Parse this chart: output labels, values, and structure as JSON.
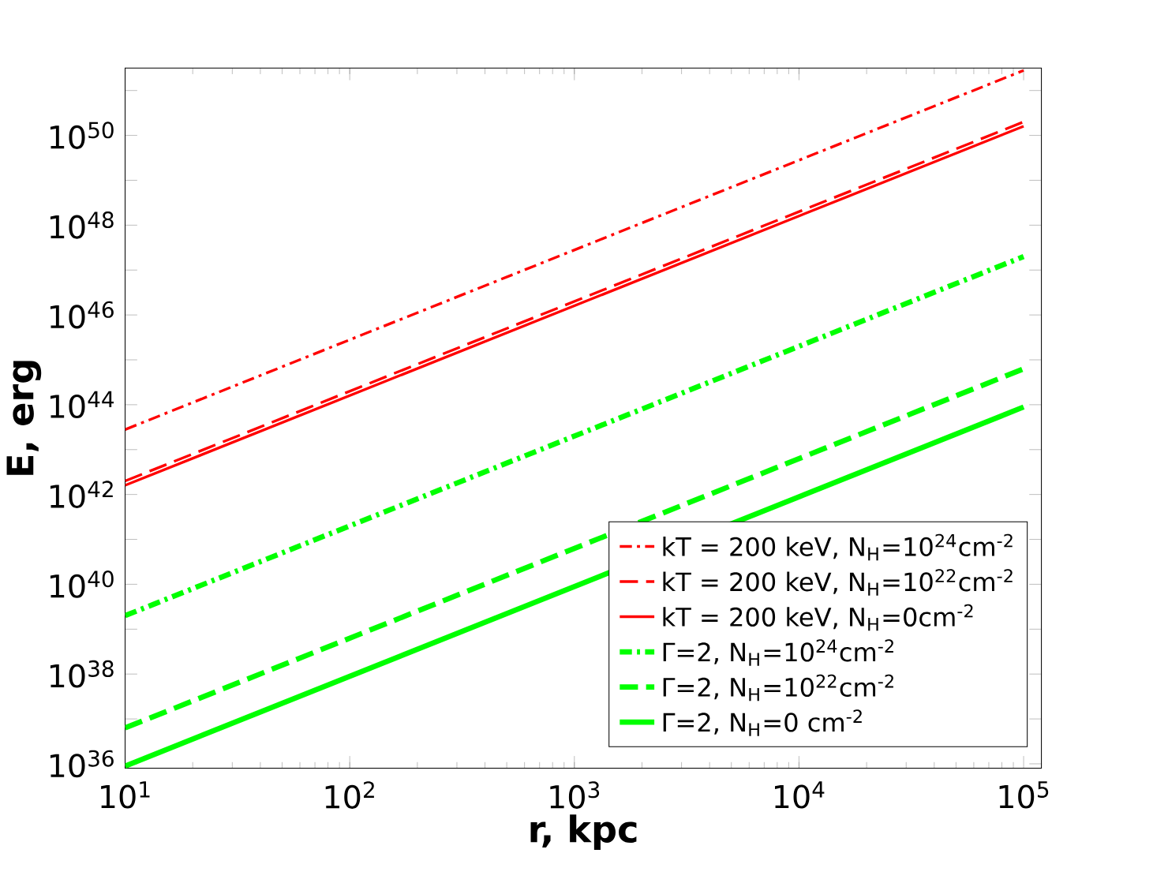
{
  "chart_data": {
    "type": "line",
    "xlabel": "r, kpc",
    "ylabel": "E, erg",
    "log": "xy",
    "x": [
      10,
      100000
    ],
    "xlim": [
      10,
      120000
    ],
    "ylim": [
      8e+35,
      3.16e+51
    ],
    "xticks": [
      {
        "value": 10,
        "label": "10$^{1}$"
      },
      {
        "value": 100,
        "label": "10$^{2}$"
      },
      {
        "value": 1000,
        "label": "10$^{3}$"
      },
      {
        "value": 10000,
        "label": "10$^{4}$"
      },
      {
        "value": 100000,
        "label": "10$^{5}$"
      }
    ],
    "yticks": [
      {
        "value": 1e+36,
        "label": "10$^{36}$"
      },
      {
        "value": 1e+37,
        "label": null
      },
      {
        "value": 1e+38,
        "label": "10$^{38}$"
      },
      {
        "value": 1e+39,
        "label": null
      },
      {
        "value": 1e+40,
        "label": "10$^{40}$"
      },
      {
        "value": 1e+41,
        "label": null
      },
      {
        "value": 1e+42,
        "label": "10$^{42}$"
      },
      {
        "value": 1e+43,
        "label": null
      },
      {
        "value": 1e+44,
        "label": "10$^{44}$"
      },
      {
        "value": 1e+45,
        "label": null
      },
      {
        "value": 1e+46,
        "label": "10$^{46}$"
      },
      {
        "value": 1e+47,
        "label": null
      },
      {
        "value": 1e+48,
        "label": "10$^{48}$"
      },
      {
        "value": 1e+49,
        "label": null
      },
      {
        "value": 1e+50,
        "label": "10$^{50}$"
      },
      {
        "value": 1e+51,
        "label": null
      }
    ],
    "legend": "bottom right",
    "marker": "none",
    "grid": false,
    "series": [
      {
        "name": "kT = 200 keV, N$_{H}$=10$^{24}$cm$^{-2}$",
        "color": "#ff0000",
        "line_style": "dashdot",
        "values": [
          2.8e+43,
          2.8e+51
        ]
      },
      {
        "name": "kT = 200 keV, N$_{H}$=10$^{22}$cm$^{-2}$",
        "color": "#ff0000",
        "line_style": "dashed",
        "values": [
          2e+42,
          2e+50
        ]
      },
      {
        "name": "kT = 200 keV, N$_{H}$=0cm$^{-2}$",
        "color": "#ff0000",
        "line_style": "solid",
        "values": [
          1.6e+42,
          1.6e+50
        ]
      },
      {
        "name": "Γ=2, N$_{H}$=10$^{24}$cm$^{-2}$",
        "color": "#00ff00",
        "line_style": "dashdot",
        "values": [
          2e+39,
          2e+47
        ]
      },
      {
        "name": "Γ=2, N$_{H}$=10$^{22}$cm$^{-2}$",
        "color": "#00ff00",
        "line_style": "dashed",
        "values": [
          6.3e+36,
          6.3e+44
        ]
      },
      {
        "name": "Γ=2, N$_{H}$=0 cm$^{-2}$",
        "color": "#00ff00",
        "line_style": "solid",
        "values": [
          8.9e+35,
          8.9e+43
        ]
      }
    ]
  }
}
